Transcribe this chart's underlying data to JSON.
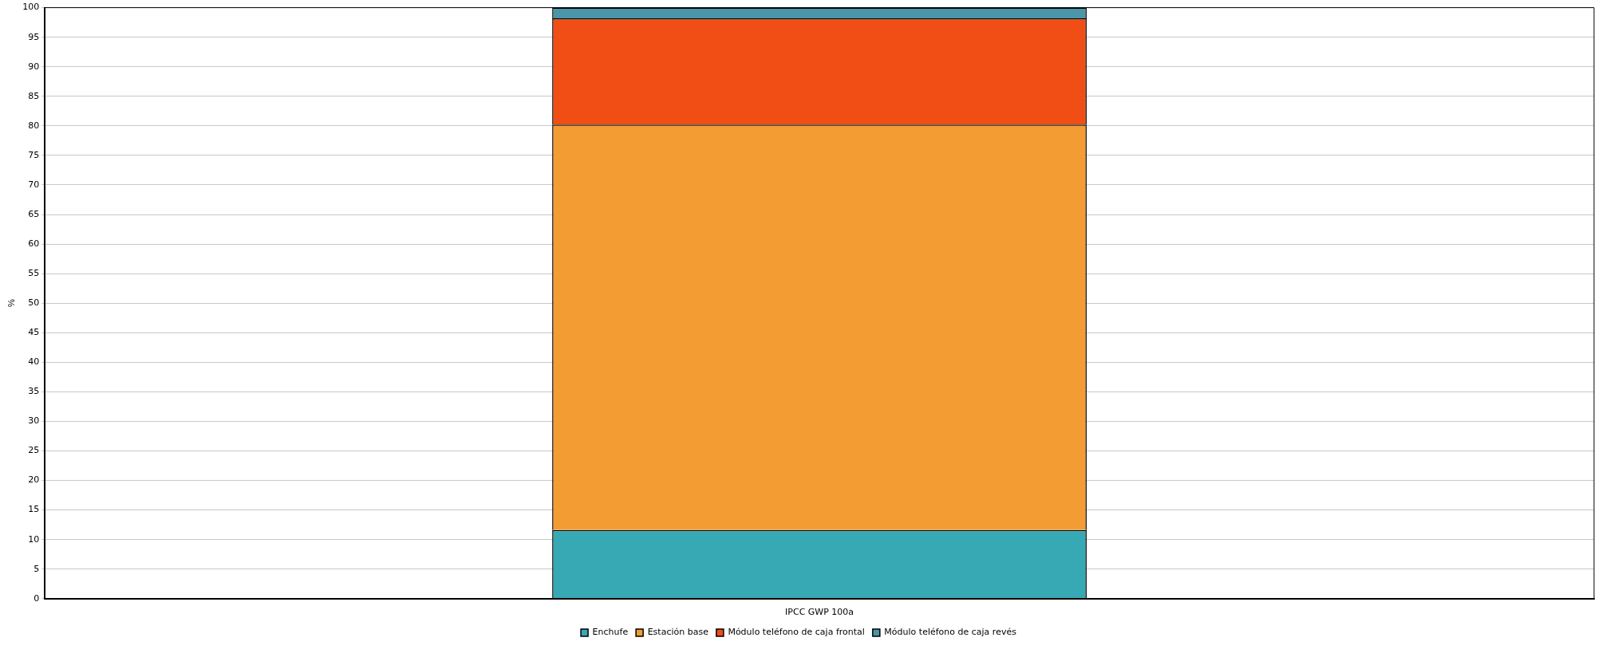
{
  "chart_data": {
    "type": "bar",
    "stacked": true,
    "categories": [
      "IPCC GWP 100a"
    ],
    "ylabel": "%",
    "ylim": [
      0,
      100
    ],
    "yticks": [
      0,
      5,
      10,
      15,
      20,
      25,
      30,
      35,
      40,
      45,
      50,
      55,
      60,
      65,
      70,
      75,
      80,
      85,
      90,
      95,
      100
    ],
    "grid": "y",
    "legend": "bottom",
    "series": [
      {
        "name": "Enchufe",
        "color": "#37a9b4",
        "values": [
          11.6
        ]
      },
      {
        "name": "Estación base",
        "color": "#f39c34",
        "values": [
          68.6
        ]
      },
      {
        "name": "Módulo teléfono de caja frontal",
        "color": "#f04e14",
        "values": [
          18.0
        ]
      },
      {
        "name": "Módulo teléfono de caja revés",
        "color": "#4a96a8",
        "values": [
          1.8
        ]
      }
    ]
  }
}
